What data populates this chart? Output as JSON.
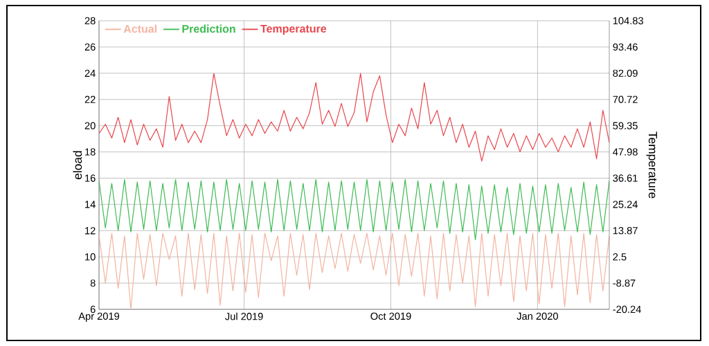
{
  "chart_data": {
    "type": "line",
    "ylabel": "eload",
    "y2label": "Temperature",
    "xlim": [
      "2019-04-01",
      "2020-02-15"
    ],
    "xticks": [
      {
        "value": "2019-04-01",
        "label": "Apr 2019"
      },
      {
        "value": "2019-07-01",
        "label": "Jul 2019"
      },
      {
        "value": "2019-10-01",
        "label": "Oct 2019"
      },
      {
        "value": "2020-01-01",
        "label": "Jan 2020"
      }
    ],
    "ylim": [
      6,
      28
    ],
    "yticks": [
      6,
      8,
      10,
      12,
      14,
      16,
      18,
      20,
      22,
      24,
      26,
      28
    ],
    "y2lim": [
      -20.24,
      104.83
    ],
    "y2ticks": [
      -20.24,
      -8.87,
      2.5,
      13.87,
      25.24,
      36.61,
      47.98,
      59.35,
      70.72,
      82.09,
      93.46,
      104.83
    ],
    "grid": true,
    "legend": "top left",
    "line_style": "solid",
    "x": [
      "2019-04-01",
      "2019-04-05",
      "2019-04-09",
      "2019-04-13",
      "2019-04-17",
      "2019-04-21",
      "2019-04-25",
      "2019-04-29",
      "2019-05-03",
      "2019-05-07",
      "2019-05-11",
      "2019-05-15",
      "2019-05-19",
      "2019-05-23",
      "2019-05-27",
      "2019-05-31",
      "2019-06-04",
      "2019-06-08",
      "2019-06-12",
      "2019-06-16",
      "2019-06-20",
      "2019-06-24",
      "2019-06-28",
      "2019-07-02",
      "2019-07-06",
      "2019-07-10",
      "2019-07-14",
      "2019-07-18",
      "2019-07-22",
      "2019-07-26",
      "2019-07-30",
      "2019-08-03",
      "2019-08-07",
      "2019-08-11",
      "2019-08-15",
      "2019-08-19",
      "2019-08-23",
      "2019-08-27",
      "2019-08-31",
      "2019-09-04",
      "2019-09-08",
      "2019-09-12",
      "2019-09-16",
      "2019-09-20",
      "2019-09-24",
      "2019-09-28",
      "2019-10-02",
      "2019-10-06",
      "2019-10-10",
      "2019-10-14",
      "2019-10-18",
      "2019-10-22",
      "2019-10-26",
      "2019-10-30",
      "2019-11-03",
      "2019-11-07",
      "2019-11-11",
      "2019-11-15",
      "2019-11-19",
      "2019-11-23",
      "2019-11-27",
      "2019-12-01",
      "2019-12-05",
      "2019-12-09",
      "2019-12-13",
      "2019-12-17",
      "2019-12-21",
      "2019-12-25",
      "2019-12-29",
      "2020-01-02",
      "2020-01-06",
      "2020-01-10",
      "2020-01-14",
      "2020-01-18",
      "2020-01-22",
      "2020-01-26",
      "2020-01-30",
      "2020-02-03",
      "2020-02-07",
      "2020-02-11",
      "2020-02-15"
    ],
    "series": [
      {
        "name": "Actual",
        "color": "#f4b3a0",
        "values": [
          11.7,
          8.0,
          11.8,
          7.6,
          11.6,
          6.0,
          11.8,
          8.3,
          11.7,
          7.8,
          11.8,
          9.8,
          11.6,
          7.0,
          11.8,
          7.5,
          11.7,
          7.2,
          11.8,
          6.3,
          11.6,
          7.4,
          11.8,
          7.3,
          11.7,
          6.9,
          11.8,
          9.7,
          11.6,
          7.0,
          11.8,
          8.6,
          11.7,
          7.5,
          11.8,
          8.8,
          11.6,
          9.1,
          11.8,
          8.9,
          11.7,
          9.5,
          11.8,
          9.0,
          11.6,
          8.6,
          11.8,
          7.8,
          11.7,
          8.5,
          11.8,
          7.0,
          11.6,
          6.8,
          11.8,
          7.4,
          11.7,
          8.0,
          11.6,
          6.2,
          11.8,
          7.0,
          11.7,
          7.8,
          11.8,
          6.6,
          11.6,
          7.4,
          11.8,
          6.4,
          11.7,
          7.6,
          11.8,
          6.2,
          11.6,
          7.1,
          11.8,
          6.5,
          11.7,
          7.4,
          11.6
        ]
      },
      {
        "name": "Prediction",
        "color": "#3dbb52",
        "values": [
          15.8,
          12.2,
          15.6,
          12.0,
          15.9,
          11.9,
          15.7,
          12.1,
          15.8,
          12.0,
          15.6,
          12.2,
          15.9,
          12.0,
          15.7,
          12.1,
          15.8,
          11.9,
          15.7,
          12.0,
          15.9,
          12.1,
          15.6,
          12.0,
          15.8,
          12.1,
          15.7,
          11.9,
          15.9,
          12.0,
          15.8,
          12.1,
          15.6,
          12.0,
          15.9,
          11.9,
          15.7,
          12.0,
          15.8,
          12.1,
          15.7,
          12.0,
          15.9,
          11.9,
          15.8,
          12.0,
          15.7,
          12.1,
          15.9,
          11.9,
          15.8,
          12.0,
          15.6,
          12.2,
          15.8,
          11.8,
          15.6,
          11.9,
          15.5,
          11.3,
          15.4,
          11.8,
          15.5,
          11.9,
          15.3,
          11.7,
          15.6,
          11.8,
          15.4,
          11.9,
          15.5,
          11.8,
          15.6,
          12.0,
          15.3,
          11.9,
          15.7,
          11.7,
          15.5,
          11.9,
          15.8
        ]
      },
      {
        "name": "Temperature",
        "color": "#e8474d",
        "axis": "y2",
        "values": [
          56,
          60,
          54,
          63,
          52,
          62,
          51,
          60,
          53,
          58,
          50,
          72,
          53,
          60,
          52,
          57,
          52,
          62,
          82,
          68,
          55,
          62,
          54,
          60,
          55,
          62,
          56,
          61,
          57,
          66,
          57,
          63,
          58,
          65,
          78,
          60,
          66,
          59,
          69,
          59,
          65,
          82,
          61,
          74,
          81,
          64,
          52,
          60,
          55,
          67,
          58,
          78,
          60,
          66,
          55,
          63,
          52,
          60,
          50,
          57,
          44,
          55,
          49,
          58,
          50,
          56,
          48,
          55,
          49,
          56,
          50,
          54,
          48,
          55,
          50,
          58,
          50,
          61,
          45,
          66,
          52
        ]
      }
    ]
  }
}
